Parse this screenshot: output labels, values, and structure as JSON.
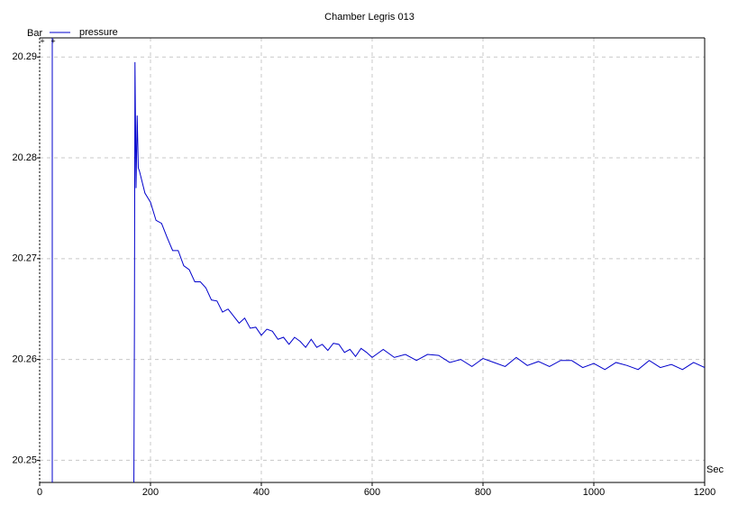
{
  "chart_data": {
    "type": "line",
    "title": "Chamber Legris 013",
    "y_unit": "Bar",
    "x_unit": "Sec",
    "xlim": [
      0,
      1200
    ],
    "xticks": [
      0,
      200,
      400,
      600,
      800,
      1000,
      1200
    ],
    "ylim": [
      20.2478,
      20.2919
    ],
    "yticks": [
      20.25,
      20.26,
      20.27,
      20.28,
      20.29
    ],
    "grid": true,
    "series": [
      {
        "name": "pressure",
        "color": "#0000cc",
        "x": [
          170,
          171,
          172,
          174,
          176,
          178,
          180,
          190,
          200,
          210,
          220,
          230,
          240,
          250,
          260,
          270,
          280,
          290,
          300,
          310,
          320,
          330,
          340,
          350,
          360,
          370,
          380,
          390,
          400,
          410,
          420,
          430,
          440,
          450,
          460,
          470,
          480,
          490,
          500,
          510,
          520,
          530,
          540,
          550,
          560,
          570,
          580,
          590,
          600,
          620,
          640,
          660,
          680,
          700,
          720,
          740,
          760,
          780,
          800,
          820,
          840,
          860,
          880,
          900,
          920,
          940,
          960,
          980,
          1000,
          1020,
          1040,
          1060,
          1080,
          1100,
          1120,
          1140,
          1160,
          1180,
          1200
        ],
        "values": [
          20.247,
          20.2625,
          20.2895,
          20.277,
          20.2842,
          20.279,
          20.2787,
          20.2765,
          20.2756,
          20.2738,
          20.2735,
          20.2721,
          20.2708,
          20.2708,
          20.2693,
          20.2689,
          20.2677,
          20.2677,
          20.2671,
          20.2659,
          20.2658,
          20.2647,
          20.265,
          20.2643,
          20.2636,
          20.2641,
          20.2631,
          20.2632,
          20.2624,
          20.263,
          20.2628,
          20.262,
          20.2622,
          20.2615,
          20.2622,
          20.2618,
          20.2612,
          20.262,
          20.2612,
          20.2615,
          20.2609,
          20.2616,
          20.2615,
          20.2607,
          20.261,
          20.2603,
          20.2611,
          20.2607,
          20.2602,
          20.261,
          20.2602,
          20.2605,
          20.2599,
          20.2605,
          20.2604,
          20.2597,
          20.26,
          20.2593,
          20.2601,
          20.2597,
          20.2593,
          20.2602,
          20.2594,
          20.2598,
          20.2593,
          20.2599,
          20.2599,
          20.2592,
          20.2596,
          20.259,
          20.2597,
          20.2594,
          20.259,
          20.2599,
          20.2592,
          20.2595,
          20.259,
          20.2597,
          20.2592
        ]
      }
    ]
  }
}
